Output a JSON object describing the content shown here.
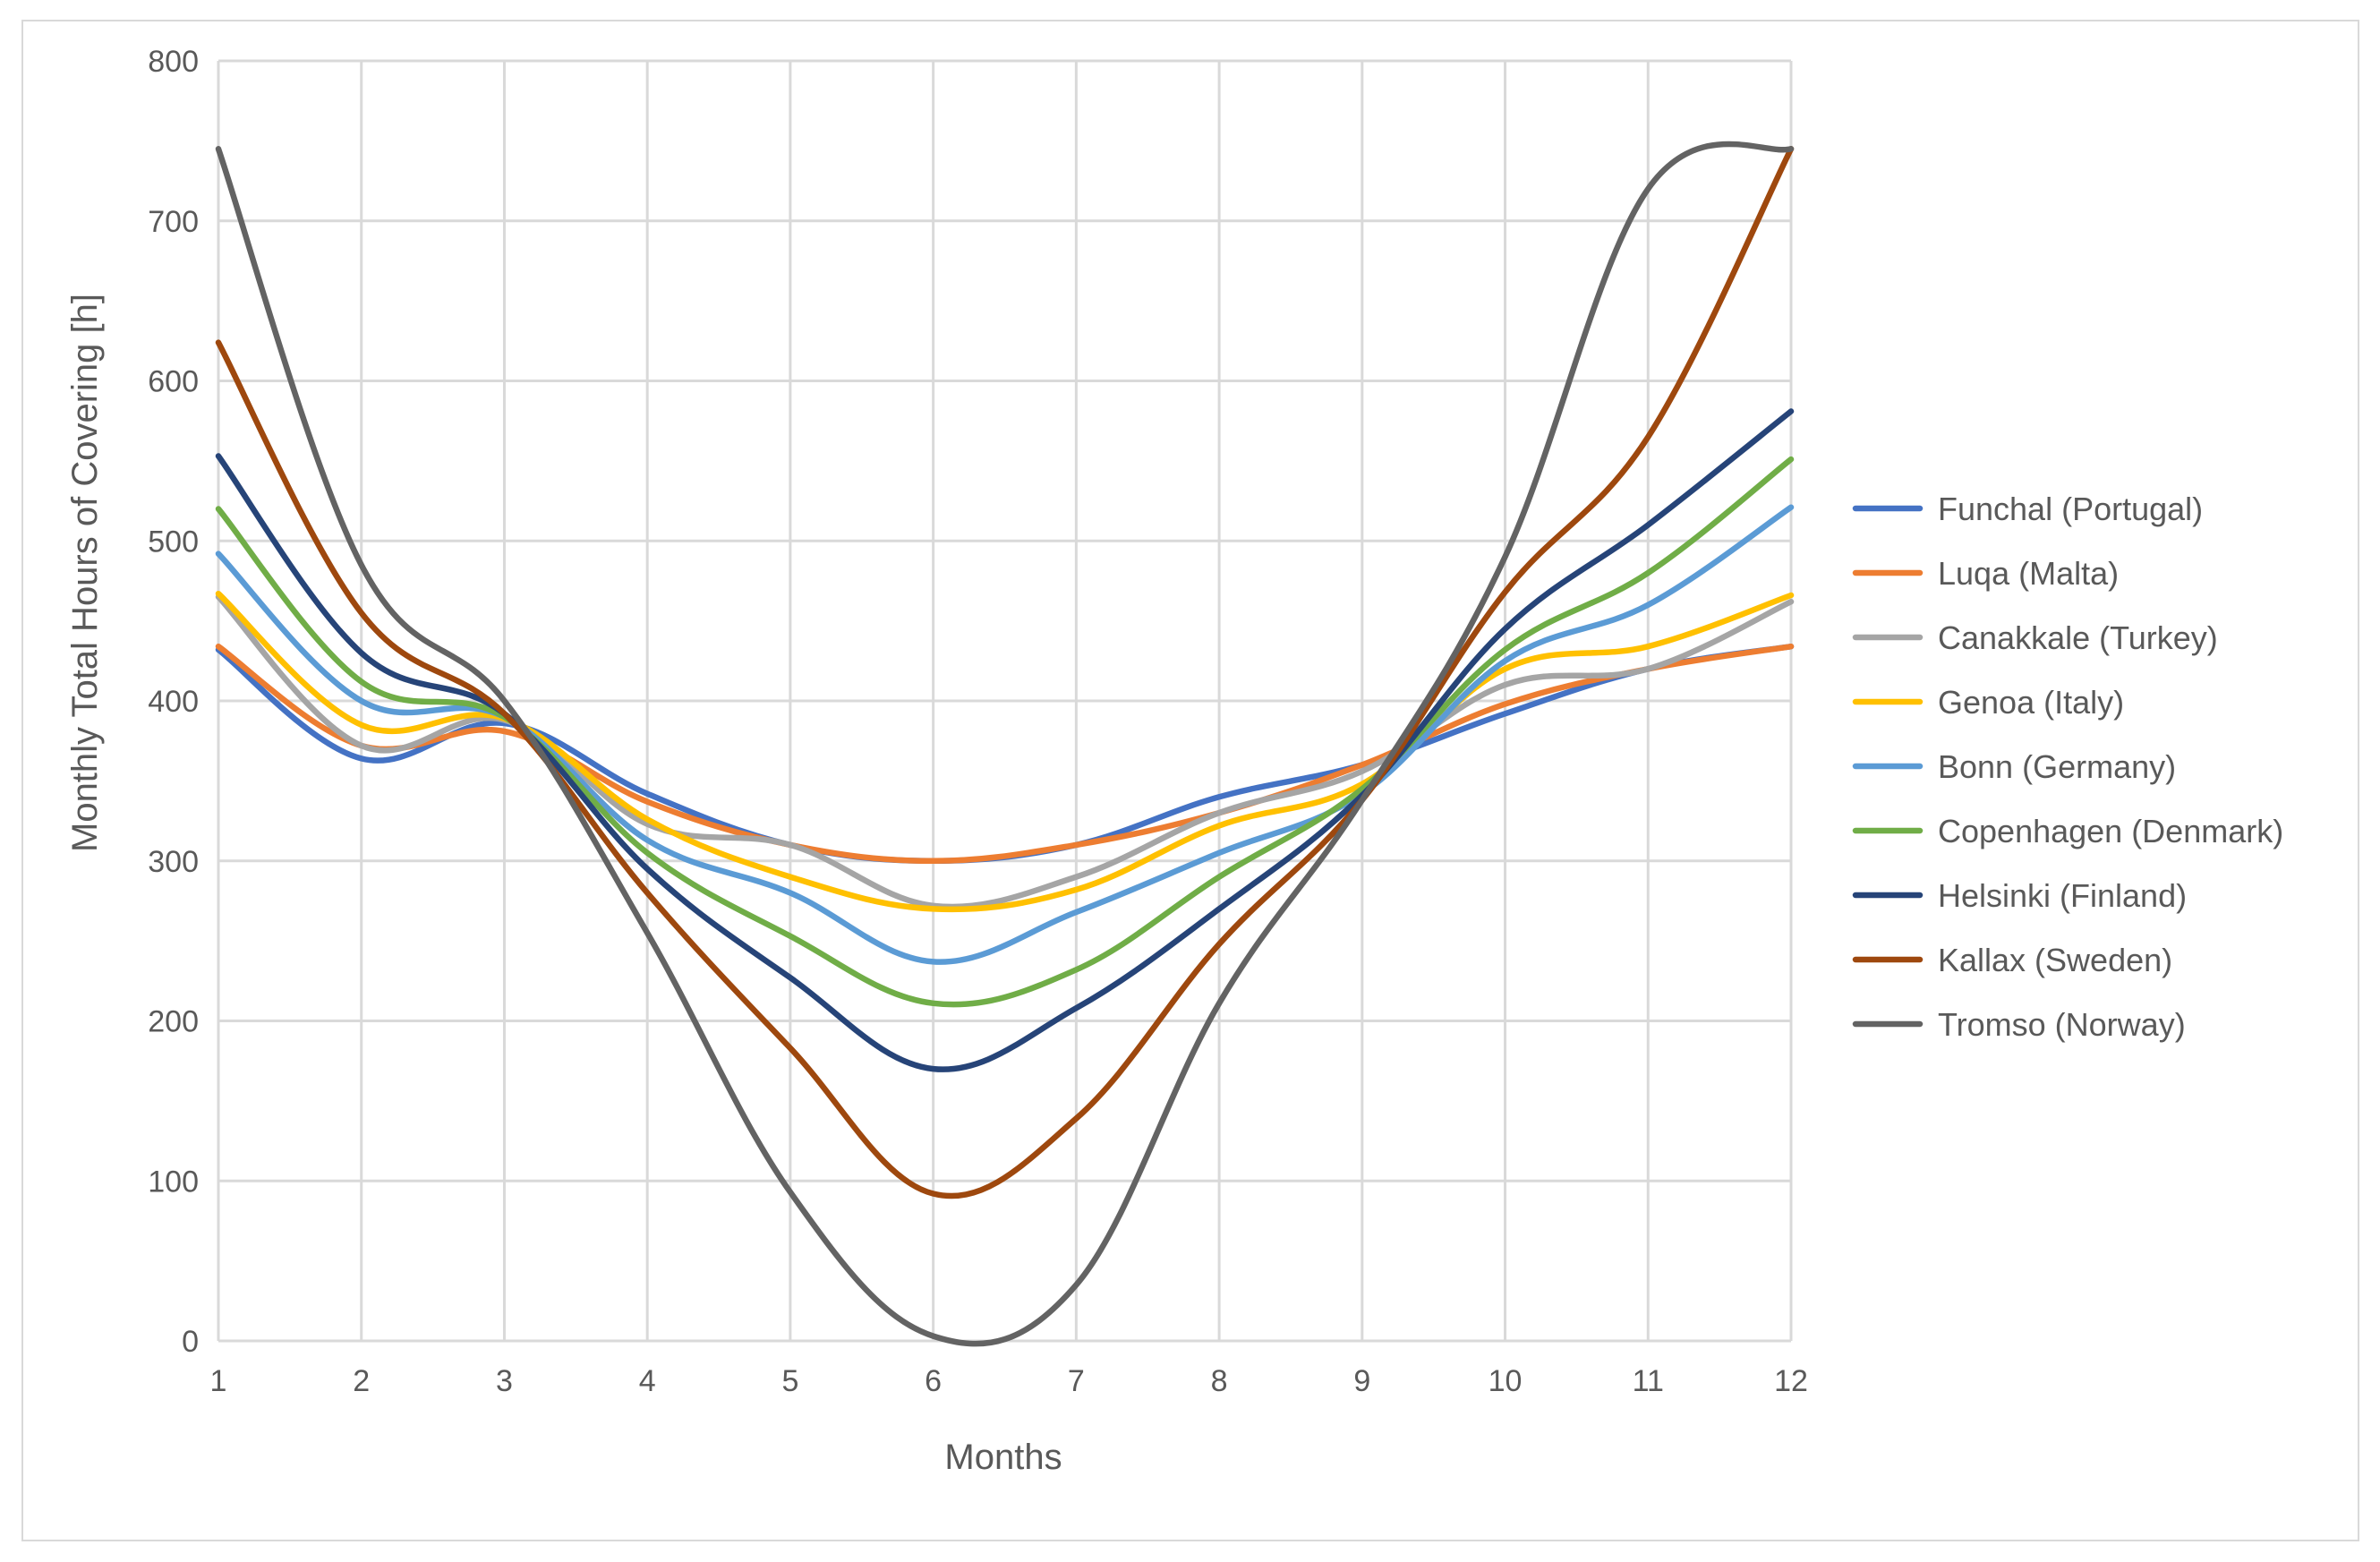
{
  "chart_data": {
    "type": "line",
    "title": "",
    "xlabel": "Months",
    "ylabel": "Monthly Total Hours of Covering [h]",
    "x": [
      1,
      2,
      3,
      4,
      5,
      6,
      7,
      8,
      9,
      10,
      11,
      12
    ],
    "x_tick_labels": [
      "1",
      "2",
      "3",
      "4",
      "5",
      "6",
      "7",
      "8",
      "9",
      "10",
      "11",
      "12"
    ],
    "ylim": [
      0,
      800
    ],
    "y_ticks": [
      0,
      100,
      200,
      300,
      400,
      500,
      600,
      700,
      800
    ],
    "y_tick_labels": [
      "0",
      "100",
      "200",
      "300",
      "400",
      "500",
      "600",
      "700",
      "800"
    ],
    "grid": "on",
    "legend_position": "right",
    "series": [
      {
        "name": "Funchal (Portugal)",
        "color": "#4472C4",
        "values": [
          432,
          364,
          386,
          342,
          310,
          300,
          310,
          340,
          360,
          392,
          420,
          434
        ]
      },
      {
        "name": "Luqa (Malta)",
        "color": "#ED7D31",
        "values": [
          434,
          372,
          381,
          337,
          310,
          300,
          310,
          330,
          360,
          398,
          420,
          434
        ]
      },
      {
        "name": "Canakkale (Turkey)",
        "color": "#A5A5A5",
        "values": [
          465,
          372,
          388,
          323,
          310,
          272,
          290,
          330,
          356,
          410,
          420,
          462
        ]
      },
      {
        "name": "Genoa (Italy)",
        "color": "#FFC000",
        "values": [
          467,
          385,
          389,
          326,
          290,
          270,
          282,
          322,
          348,
          420,
          434,
          466
        ]
      },
      {
        "name": "Bonn (Germany)",
        "color": "#5B9BD5",
        "values": [
          492,
          400,
          390,
          313,
          280,
          237,
          268,
          305,
          342,
          425,
          460,
          521
        ]
      },
      {
        "name": "Copenhagen (Denmark)",
        "color": "#70AD47",
        "values": [
          520,
          412,
          390,
          305,
          253,
          211,
          232,
          290,
          345,
          432,
          480,
          551
        ]
      },
      {
        "name": "Helsinki (Finland)",
        "color": "#264478",
        "values": [
          553,
          430,
          392,
          295,
          227,
          170,
          208,
          270,
          341,
          445,
          510,
          581
        ]
      },
      {
        "name": "Kallax (Sweden)",
        "color": "#9E480E",
        "values": [
          624,
          455,
          392,
          280,
          183,
          92,
          139,
          248,
          338,
          468,
          565,
          745
        ]
      },
      {
        "name": "Tromso (Norway)",
        "color": "#636363",
        "values": [
          745,
          485,
          400,
          255,
          93,
          3,
          35,
          211,
          338,
          490,
          720,
          745
        ]
      }
    ]
  }
}
